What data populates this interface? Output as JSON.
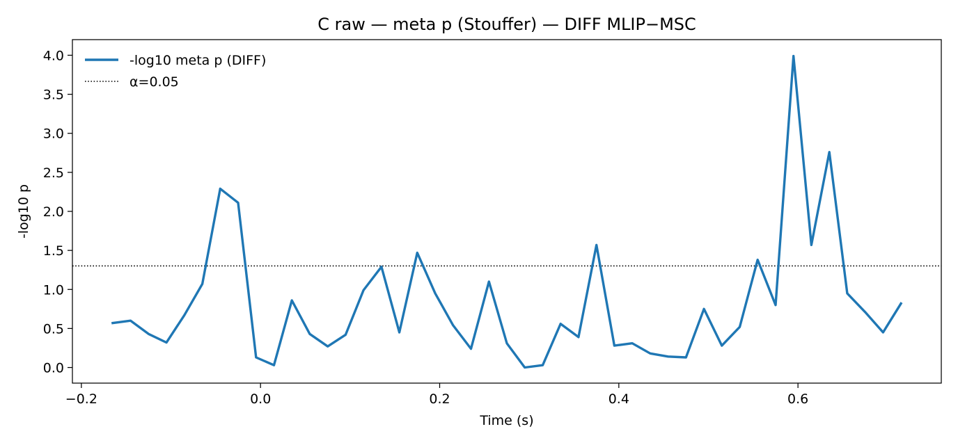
{
  "chart_data": {
    "type": "line",
    "title": "C raw — meta p (Stouffer) — DIFF MLIP−MSC",
    "xlabel": "Time (s)",
    "ylabel": "-log10 p",
    "xlim": [
      -0.21,
      0.76
    ],
    "ylim": [
      -0.2,
      4.2
    ],
    "xticks": [
      -0.2,
      0.0,
      0.2,
      0.4,
      0.6
    ],
    "xtick_labels": [
      "−0.2",
      "0.0",
      "0.2",
      "0.4",
      "0.6"
    ],
    "yticks": [
      0.0,
      0.5,
      1.0,
      1.5,
      2.0,
      2.5,
      3.0,
      3.5,
      4.0
    ],
    "ytick_labels": [
      "0.0",
      "0.5",
      "1.0",
      "1.5",
      "2.0",
      "2.5",
      "3.0",
      "3.5",
      "4.0"
    ],
    "grid": false,
    "legend_position": "top-left",
    "series": [
      {
        "name": "-log10 meta p (DIFF)",
        "color": "#1f77b4",
        "style": "solid",
        "x": [
          -0.165,
          -0.145,
          -0.125,
          -0.105,
          -0.085,
          -0.065,
          -0.045,
          -0.025,
          -0.005,
          0.015,
          0.035,
          0.055,
          0.075,
          0.095,
          0.115,
          0.135,
          0.155,
          0.175,
          0.195,
          0.215,
          0.235,
          0.255,
          0.275,
          0.295,
          0.315,
          0.335,
          0.355,
          0.375,
          0.395,
          0.415,
          0.435,
          0.455,
          0.475,
          0.495,
          0.515,
          0.535,
          0.555,
          0.575,
          0.595,
          0.615,
          0.635,
          0.655,
          0.675,
          0.695,
          0.715
        ],
        "y": [
          0.57,
          0.6,
          0.43,
          0.32,
          0.67,
          1.07,
          2.29,
          2.11,
          0.13,
          0.03,
          0.86,
          0.43,
          0.27,
          0.42,
          0.99,
          1.29,
          0.45,
          1.47,
          0.95,
          0.54,
          0.24,
          1.1,
          0.31,
          0.0,
          0.03,
          0.56,
          0.39,
          1.57,
          0.28,
          0.31,
          0.18,
          0.14,
          0.13,
          0.75,
          0.28,
          0.52,
          1.38,
          0.8,
          3.99,
          1.57,
          2.76,
          0.95,
          0.71,
          0.45,
          0.82
        ]
      }
    ],
    "reference_lines": [
      {
        "name": "α=0.05",
        "y": 1.301,
        "color": "#000000",
        "style": "dotted"
      }
    ]
  }
}
